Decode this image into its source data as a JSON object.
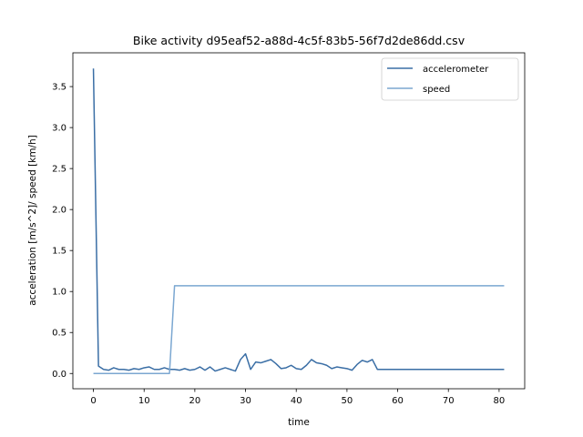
{
  "chart_data": {
    "type": "line",
    "title": "Bike activity d95eaf52-a88d-4c5f-83b5-56f7d2de86dd.csv",
    "xlabel": "time",
    "ylabel": "acceleration [m/s^2]/ speed [km/h]",
    "xlim": [
      -4.05,
      85.05
    ],
    "ylim": [
      -0.186,
      3.912
    ],
    "xticks": [
      0,
      10,
      20,
      30,
      40,
      50,
      60,
      70,
      80
    ],
    "yticks": [
      0.0,
      0.5,
      1.0,
      1.5,
      2.0,
      2.5,
      3.0,
      3.5
    ],
    "ytick_labels": [
      "0.0",
      "0.5",
      "1.0",
      "1.5",
      "2.0",
      "2.5",
      "3.0",
      "3.5"
    ],
    "grid": false,
    "legend_position": "top-right",
    "series": [
      {
        "name": "accelerometer",
        "color": "#3a6ea5",
        "x": [
          0,
          1,
          2,
          3,
          4,
          5,
          6,
          7,
          8,
          9,
          10,
          11,
          12,
          13,
          14,
          15,
          16,
          17,
          18,
          19,
          20,
          21,
          22,
          23,
          24,
          25,
          26,
          27,
          28,
          29,
          30,
          31,
          32,
          33,
          34,
          35,
          36,
          37,
          38,
          39,
          40,
          41,
          42,
          43,
          44,
          45,
          46,
          47,
          48,
          49,
          50,
          51,
          52,
          53,
          54,
          55,
          56,
          57,
          58,
          59,
          60,
          61,
          62,
          63,
          64,
          65,
          66,
          67,
          68,
          69,
          70,
          71,
          72,
          73,
          74,
          75,
          76,
          77,
          78,
          79,
          80,
          81
        ],
        "y": [
          3.72,
          0.09,
          0.05,
          0.04,
          0.07,
          0.05,
          0.05,
          0.04,
          0.06,
          0.05,
          0.07,
          0.08,
          0.05,
          0.05,
          0.07,
          0.05,
          0.05,
          0.04,
          0.06,
          0.04,
          0.05,
          0.08,
          0.04,
          0.08,
          0.03,
          0.05,
          0.07,
          0.05,
          0.03,
          0.17,
          0.24,
          0.05,
          0.14,
          0.13,
          0.15,
          0.17,
          0.12,
          0.06,
          0.07,
          0.1,
          0.06,
          0.05,
          0.1,
          0.17,
          0.13,
          0.12,
          0.1,
          0.06,
          0.08,
          0.07,
          0.06,
          0.04,
          0.11,
          0.16,
          0.14,
          0.17,
          0.05,
          0.05,
          0.05,
          0.05,
          0.05,
          0.05,
          0.05,
          0.05,
          0.05,
          0.05,
          0.05,
          0.05,
          0.05,
          0.05,
          0.05,
          0.05,
          0.05,
          0.05,
          0.05,
          0.05,
          0.05,
          0.05,
          0.05,
          0.05,
          0.05,
          0.05
        ]
      },
      {
        "name": "speed",
        "color": "#7ba7d1",
        "x": [
          0,
          15,
          16,
          81
        ],
        "y": [
          0.0,
          0.0,
          1.07,
          1.07
        ]
      }
    ]
  }
}
